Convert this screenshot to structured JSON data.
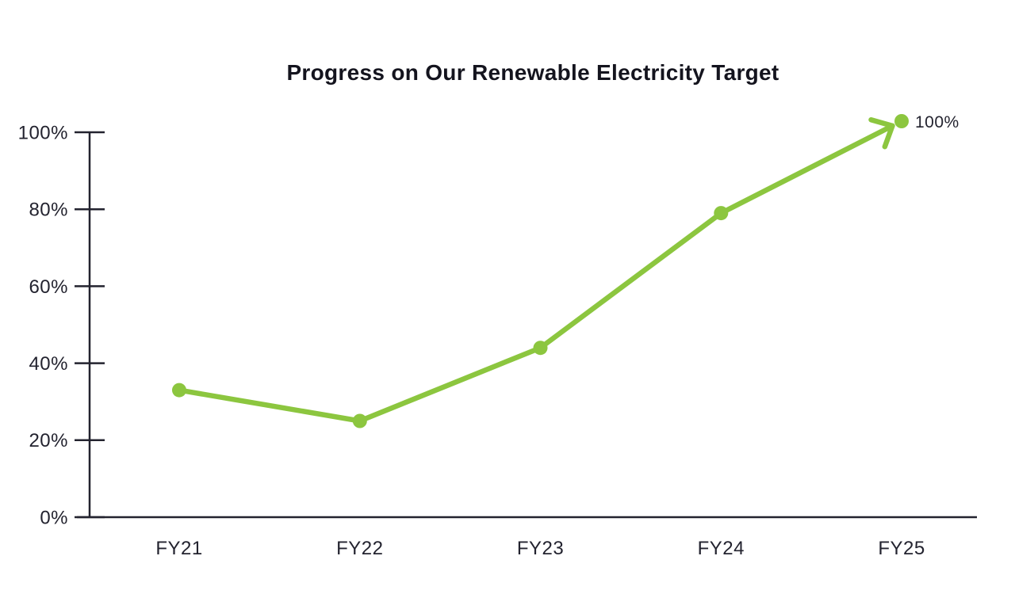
{
  "chart_data": {
    "type": "line",
    "title": "Progress on Our Renewable Electricity Target",
    "categories": [
      "FY21",
      "FY22",
      "FY23",
      "FY24",
      "FY25"
    ],
    "values": [
      33,
      25,
      44,
      79,
      100
    ],
    "ytick_labels": [
      "0%",
      "20%",
      "40%",
      "60%",
      "80%",
      "100%"
    ],
    "ylim": [
      0,
      100
    ],
    "annotation": {
      "text": "100%",
      "at_category": "FY25"
    },
    "grid": false,
    "legend": false,
    "markers": true,
    "arrow_at_end": true,
    "line_color": "#8cc63f",
    "axis_color": "#23232f",
    "text_color": "#23232f",
    "title_color": "#14141e",
    "background_color": "#ffffff"
  }
}
